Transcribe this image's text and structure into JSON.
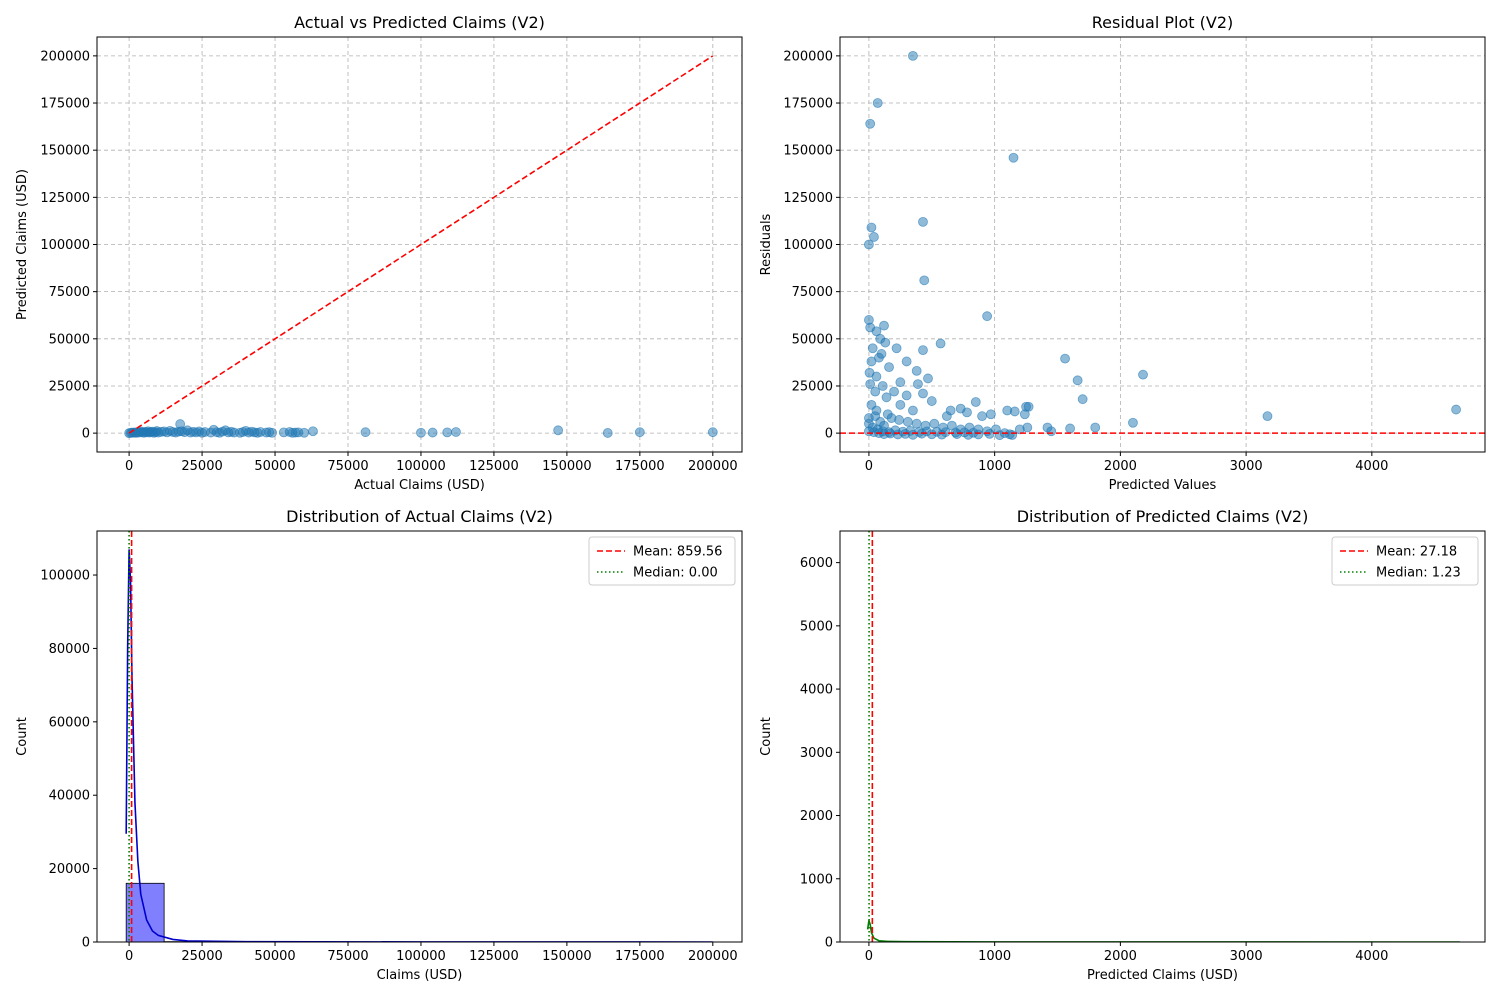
{
  "chart_data": [
    {
      "id": "scatter",
      "type": "scatter",
      "title": "Actual vs Predicted Claims (V2)",
      "xlabel": "Actual Claims (USD)",
      "ylabel": "Predicted Claims (USD)",
      "xlim": [
        -11000,
        210000
      ],
      "ylim": [
        -10000,
        210000
      ],
      "xticks": [
        0,
        25000,
        50000,
        75000,
        100000,
        125000,
        150000,
        175000,
        200000
      ],
      "yticks": [
        0,
        25000,
        50000,
        75000,
        100000,
        125000,
        150000,
        175000,
        200000
      ],
      "grid": true,
      "point_color": "#1f77b4",
      "reference_line": {
        "from": [
          0,
          0
        ],
        "to": [
          200000,
          200000
        ],
        "color": "#ff0000",
        "style": "dashed"
      },
      "points": [
        [
          0,
          0
        ],
        [
          500,
          100
        ],
        [
          1000,
          300
        ],
        [
          1500,
          200
        ],
        [
          2000,
          400
        ],
        [
          2500,
          150
        ],
        [
          3000,
          600
        ],
        [
          3500,
          300
        ],
        [
          4000,
          900
        ],
        [
          4500,
          500
        ],
        [
          5000,
          200
        ],
        [
          5500,
          700
        ],
        [
          6000,
          400
        ],
        [
          6500,
          1000
        ],
        [
          7000,
          300
        ],
        [
          7500,
          600
        ],
        [
          8000,
          800
        ],
        [
          8500,
          200
        ],
        [
          9000,
          500
        ],
        [
          9500,
          1100
        ],
        [
          10000,
          300
        ],
        [
          11000,
          700
        ],
        [
          12000,
          900
        ],
        [
          13000,
          400
        ],
        [
          14000,
          1200
        ],
        [
          15000,
          600
        ],
        [
          16000,
          300
        ],
        [
          17000,
          800
        ],
        [
          17500,
          4800
        ],
        [
          18000,
          1000
        ],
        [
          19000,
          500
        ],
        [
          20000,
          1500
        ],
        [
          21000,
          300
        ],
        [
          22000,
          700
        ],
        [
          23000,
          400
        ],
        [
          24000,
          900
        ],
        [
          25000,
          200
        ],
        [
          26000,
          600
        ],
        [
          28000,
          300
        ],
        [
          29000,
          1800
        ],
        [
          30000,
          500
        ],
        [
          31000,
          200
        ],
        [
          32000,
          800
        ],
        [
          33000,
          1500
        ],
        [
          34000,
          400
        ],
        [
          35000,
          700
        ],
        [
          36000,
          300
        ],
        [
          38000,
          200
        ],
        [
          39000,
          600
        ],
        [
          40000,
          1200
        ],
        [
          41000,
          300
        ],
        [
          42000,
          800
        ],
        [
          43000,
          400
        ],
        [
          44000,
          200
        ],
        [
          45000,
          600
        ],
        [
          47000,
          300
        ],
        [
          48000,
          500
        ],
        [
          49000,
          200
        ],
        [
          53000,
          400
        ],
        [
          55000,
          600
        ],
        [
          56000,
          200
        ],
        [
          57000,
          300
        ],
        [
          58000,
          400
        ],
        [
          60000,
          200
        ],
        [
          63000,
          1000
        ],
        [
          81000,
          500
        ],
        [
          100000,
          200
        ],
        [
          104000,
          300
        ],
        [
          109000,
          400
        ],
        [
          112000,
          600
        ],
        [
          147000,
          1500
        ],
        [
          164000,
          100
        ],
        [
          175000,
          500
        ],
        [
          200000,
          500
        ]
      ]
    },
    {
      "id": "residual",
      "type": "scatter",
      "title": "Residual Plot (V2)",
      "xlabel": "Predicted Values",
      "ylabel": "Residuals",
      "xlim": [
        -230,
        4900
      ],
      "ylim": [
        -10000,
        210000
      ],
      "xticks": [
        0,
        1000,
        2000,
        3000,
        4000
      ],
      "yticks": [
        0,
        25000,
        50000,
        75000,
        100000,
        125000,
        150000,
        175000,
        200000
      ],
      "grid": true,
      "point_color": "#1f77b4",
      "zero_line": {
        "y": 0,
        "color": "#ff0000",
        "style": "dashed"
      },
      "points": [
        [
          350,
          200000
        ],
        [
          70,
          175000
        ],
        [
          10,
          164000
        ],
        [
          1150,
          146000
        ],
        [
          430,
          112000
        ],
        [
          20,
          109000
        ],
        [
          40,
          104000
        ],
        [
          0,
          100000
        ],
        [
          440,
          81000
        ],
        [
          940,
          62000
        ],
        [
          0,
          60000
        ],
        [
          10,
          56000
        ],
        [
          120,
          57000
        ],
        [
          60,
          54000
        ],
        [
          90,
          50000
        ],
        [
          130,
          48000
        ],
        [
          570,
          47500
        ],
        [
          220,
          45000
        ],
        [
          430,
          44000
        ],
        [
          30,
          45000
        ],
        [
          100,
          42000
        ],
        [
          1560,
          39500
        ],
        [
          300,
          38000
        ],
        [
          80,
          40000
        ],
        [
          20,
          38000
        ],
        [
          160,
          35000
        ],
        [
          380,
          33000
        ],
        [
          2180,
          31000
        ],
        [
          5,
          32000
        ],
        [
          60,
          30000
        ],
        [
          470,
          29000
        ],
        [
          1660,
          28000
        ],
        [
          250,
          27000
        ],
        [
          390,
          26000
        ],
        [
          10,
          26000
        ],
        [
          110,
          25000
        ],
        [
          200,
          22000
        ],
        [
          430,
          21000
        ],
        [
          50,
          22000
        ],
        [
          300,
          20000
        ],
        [
          1700,
          18000
        ],
        [
          140,
          19000
        ],
        [
          850,
          16500
        ],
        [
          500,
          17000
        ],
        [
          650,
          12000
        ],
        [
          1270,
          14000
        ],
        [
          1250,
          14000
        ],
        [
          730,
          13000
        ],
        [
          1100,
          12000
        ],
        [
          1160,
          11500
        ],
        [
          4670,
          12500
        ],
        [
          900,
          9000
        ],
        [
          970,
          10000
        ],
        [
          3170,
          9000
        ],
        [
          780,
          11000
        ],
        [
          2100,
          5500
        ],
        [
          1240,
          10000
        ],
        [
          620,
          9000
        ],
        [
          250,
          15000
        ],
        [
          350,
          12000
        ],
        [
          150,
          10000
        ],
        [
          50,
          9000
        ],
        [
          0,
          8000
        ],
        [
          20,
          15000
        ],
        [
          60,
          12000
        ],
        [
          90,
          6000
        ],
        [
          120,
          4000
        ],
        [
          180,
          8000
        ],
        [
          240,
          7000
        ],
        [
          310,
          6000
        ],
        [
          380,
          5000
        ],
        [
          450,
          4000
        ],
        [
          520,
          5000
        ],
        [
          590,
          3000
        ],
        [
          660,
          4000
        ],
        [
          730,
          2000
        ],
        [
          800,
          3000
        ],
        [
          870,
          2000
        ],
        [
          940,
          1000
        ],
        [
          1010,
          2000
        ],
        [
          1080,
          0
        ],
        [
          1140,
          -1000
        ],
        [
          1200,
          2000
        ],
        [
          1260,
          3000
        ],
        [
          1420,
          3000
        ],
        [
          1450,
          1000
        ],
        [
          1600,
          2500
        ],
        [
          1800,
          3000
        ],
        [
          0,
          5000
        ],
        [
          30,
          3000
        ],
        [
          70,
          2000
        ],
        [
          110,
          1000
        ],
        [
          160,
          500
        ],
        [
          210,
          1500
        ],
        [
          270,
          800
        ],
        [
          330,
          1200
        ],
        [
          400,
          600
        ],
        [
          460,
          900
        ],
        [
          540,
          700
        ],
        [
          610,
          500
        ],
        [
          690,
          300
        ],
        [
          760,
          400
        ],
        [
          830,
          200
        ],
        [
          0,
          1000
        ],
        [
          40,
          500
        ],
        [
          80,
          0
        ],
        [
          120,
          -500
        ],
        [
          170,
          -200
        ],
        [
          230,
          -700
        ],
        [
          290,
          -400
        ],
        [
          350,
          -900
        ],
        [
          420,
          -300
        ],
        [
          500,
          -600
        ],
        [
          580,
          -800
        ],
        [
          700,
          -500
        ],
        [
          790,
          -900
        ],
        [
          870,
          -700
        ],
        [
          960,
          -400
        ],
        [
          1040,
          -1100
        ],
        [
          1120,
          -600
        ]
      ]
    },
    {
      "id": "hist-actual",
      "type": "bar",
      "title": "Distribution of Actual Claims (V2)",
      "xlabel": "Claims (USD)",
      "ylabel": "Count",
      "xlim": [
        -11000,
        210000
      ],
      "ylim": [
        0,
        112000
      ],
      "xticks": [
        0,
        25000,
        50000,
        75000,
        100000,
        125000,
        150000,
        175000,
        200000
      ],
      "yticks": [
        0,
        20000,
        40000,
        60000,
        80000,
        100000
      ],
      "bin_edges": [
        -1000,
        12000,
        25000,
        38000,
        51000,
        64000,
        77000,
        90000,
        103000,
        116000,
        129000,
        142000,
        155000,
        168000,
        181000,
        194000,
        201000
      ],
      "counts": [
        16000,
        100,
        40,
        20,
        10,
        5,
        3,
        3,
        3,
        2,
        1,
        1,
        1,
        1,
        1,
        1
      ],
      "bar_color": "#8080ff",
      "kde": {
        "color": "#0000cc",
        "points": [
          [
            -1000,
            29500
          ],
          [
            -500,
            80000
          ],
          [
            0,
            107000
          ],
          [
            500,
            98000
          ],
          [
            1000,
            72000
          ],
          [
            2000,
            38000
          ],
          [
            3000,
            22000
          ],
          [
            4000,
            13000
          ],
          [
            6000,
            6000
          ],
          [
            8000,
            3000
          ],
          [
            10000,
            1800
          ],
          [
            15000,
            700
          ],
          [
            20000,
            300
          ],
          [
            40000,
            100
          ],
          [
            100000,
            20
          ],
          [
            200000,
            0
          ]
        ]
      },
      "legend": {
        "position": "upper right",
        "entries": [
          {
            "label": "Mean: 859.56",
            "value": 859.56,
            "color": "#ff0000",
            "style": "dashed"
          },
          {
            "label": "Median: 0.00",
            "value": 0.0,
            "color": "#008000",
            "style": "dotted"
          }
        ]
      }
    },
    {
      "id": "hist-predicted",
      "type": "bar",
      "title": "Distribution of Predicted Claims (V2)",
      "xlabel": "Predicted Claims (USD)",
      "ylabel": "Count",
      "xlim": [
        -230,
        4900
      ],
      "ylim": [
        0,
        6500
      ],
      "xticks": [
        0,
        1000,
        2000,
        3000,
        4000
      ],
      "yticks": [
        0,
        1000,
        2000,
        3000,
        4000,
        5000,
        6000
      ],
      "bin_edges": [],
      "counts": [],
      "bar_color": "#80c080",
      "kde": {
        "color": "#008000",
        "points": [
          [
            -10,
            200
          ],
          [
            0,
            340
          ],
          [
            10,
            280
          ],
          [
            20,
            150
          ],
          [
            40,
            60
          ],
          [
            80,
            20
          ],
          [
            150,
            10
          ],
          [
            300,
            5
          ],
          [
            1000,
            2
          ],
          [
            2000,
            1
          ],
          [
            4700,
            0
          ]
        ]
      },
      "legend": {
        "position": "upper right",
        "entries": [
          {
            "label": "Mean: 27.18",
            "value": 27.18,
            "color": "#ff0000",
            "style": "dashed"
          },
          {
            "label": "Median: 1.23",
            "value": 1.23,
            "color": "#008000",
            "style": "dotted"
          }
        ]
      }
    }
  ]
}
